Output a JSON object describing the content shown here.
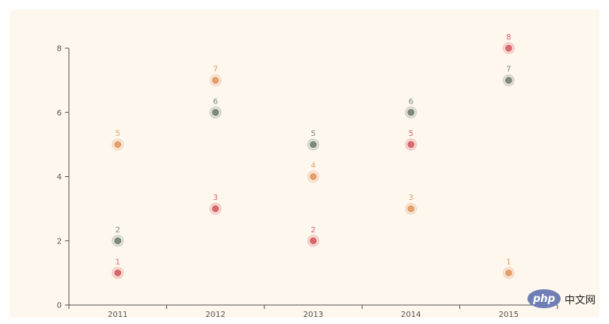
{
  "chart_data": {
    "type": "scatter",
    "categories": [
      "2011",
      "2012",
      "2013",
      "2014",
      "2015"
    ],
    "ylim": [
      0,
      8
    ],
    "y_ticks": [
      0,
      2,
      4,
      6,
      8
    ],
    "grid": false,
    "legend": "none",
    "data_labels": true,
    "series": [
      {
        "color": "#d9686c",
        "values": [
          1,
          3,
          2,
          5,
          8
        ]
      },
      {
        "color": "#e1a06c",
        "values": [
          5,
          7,
          4,
          3,
          1
        ]
      },
      {
        "color": "#7b8a7d",
        "values": [
          2,
          6,
          5,
          6,
          7
        ]
      }
    ]
  },
  "watermark": {
    "logo_text": "php",
    "text": "中文网"
  }
}
